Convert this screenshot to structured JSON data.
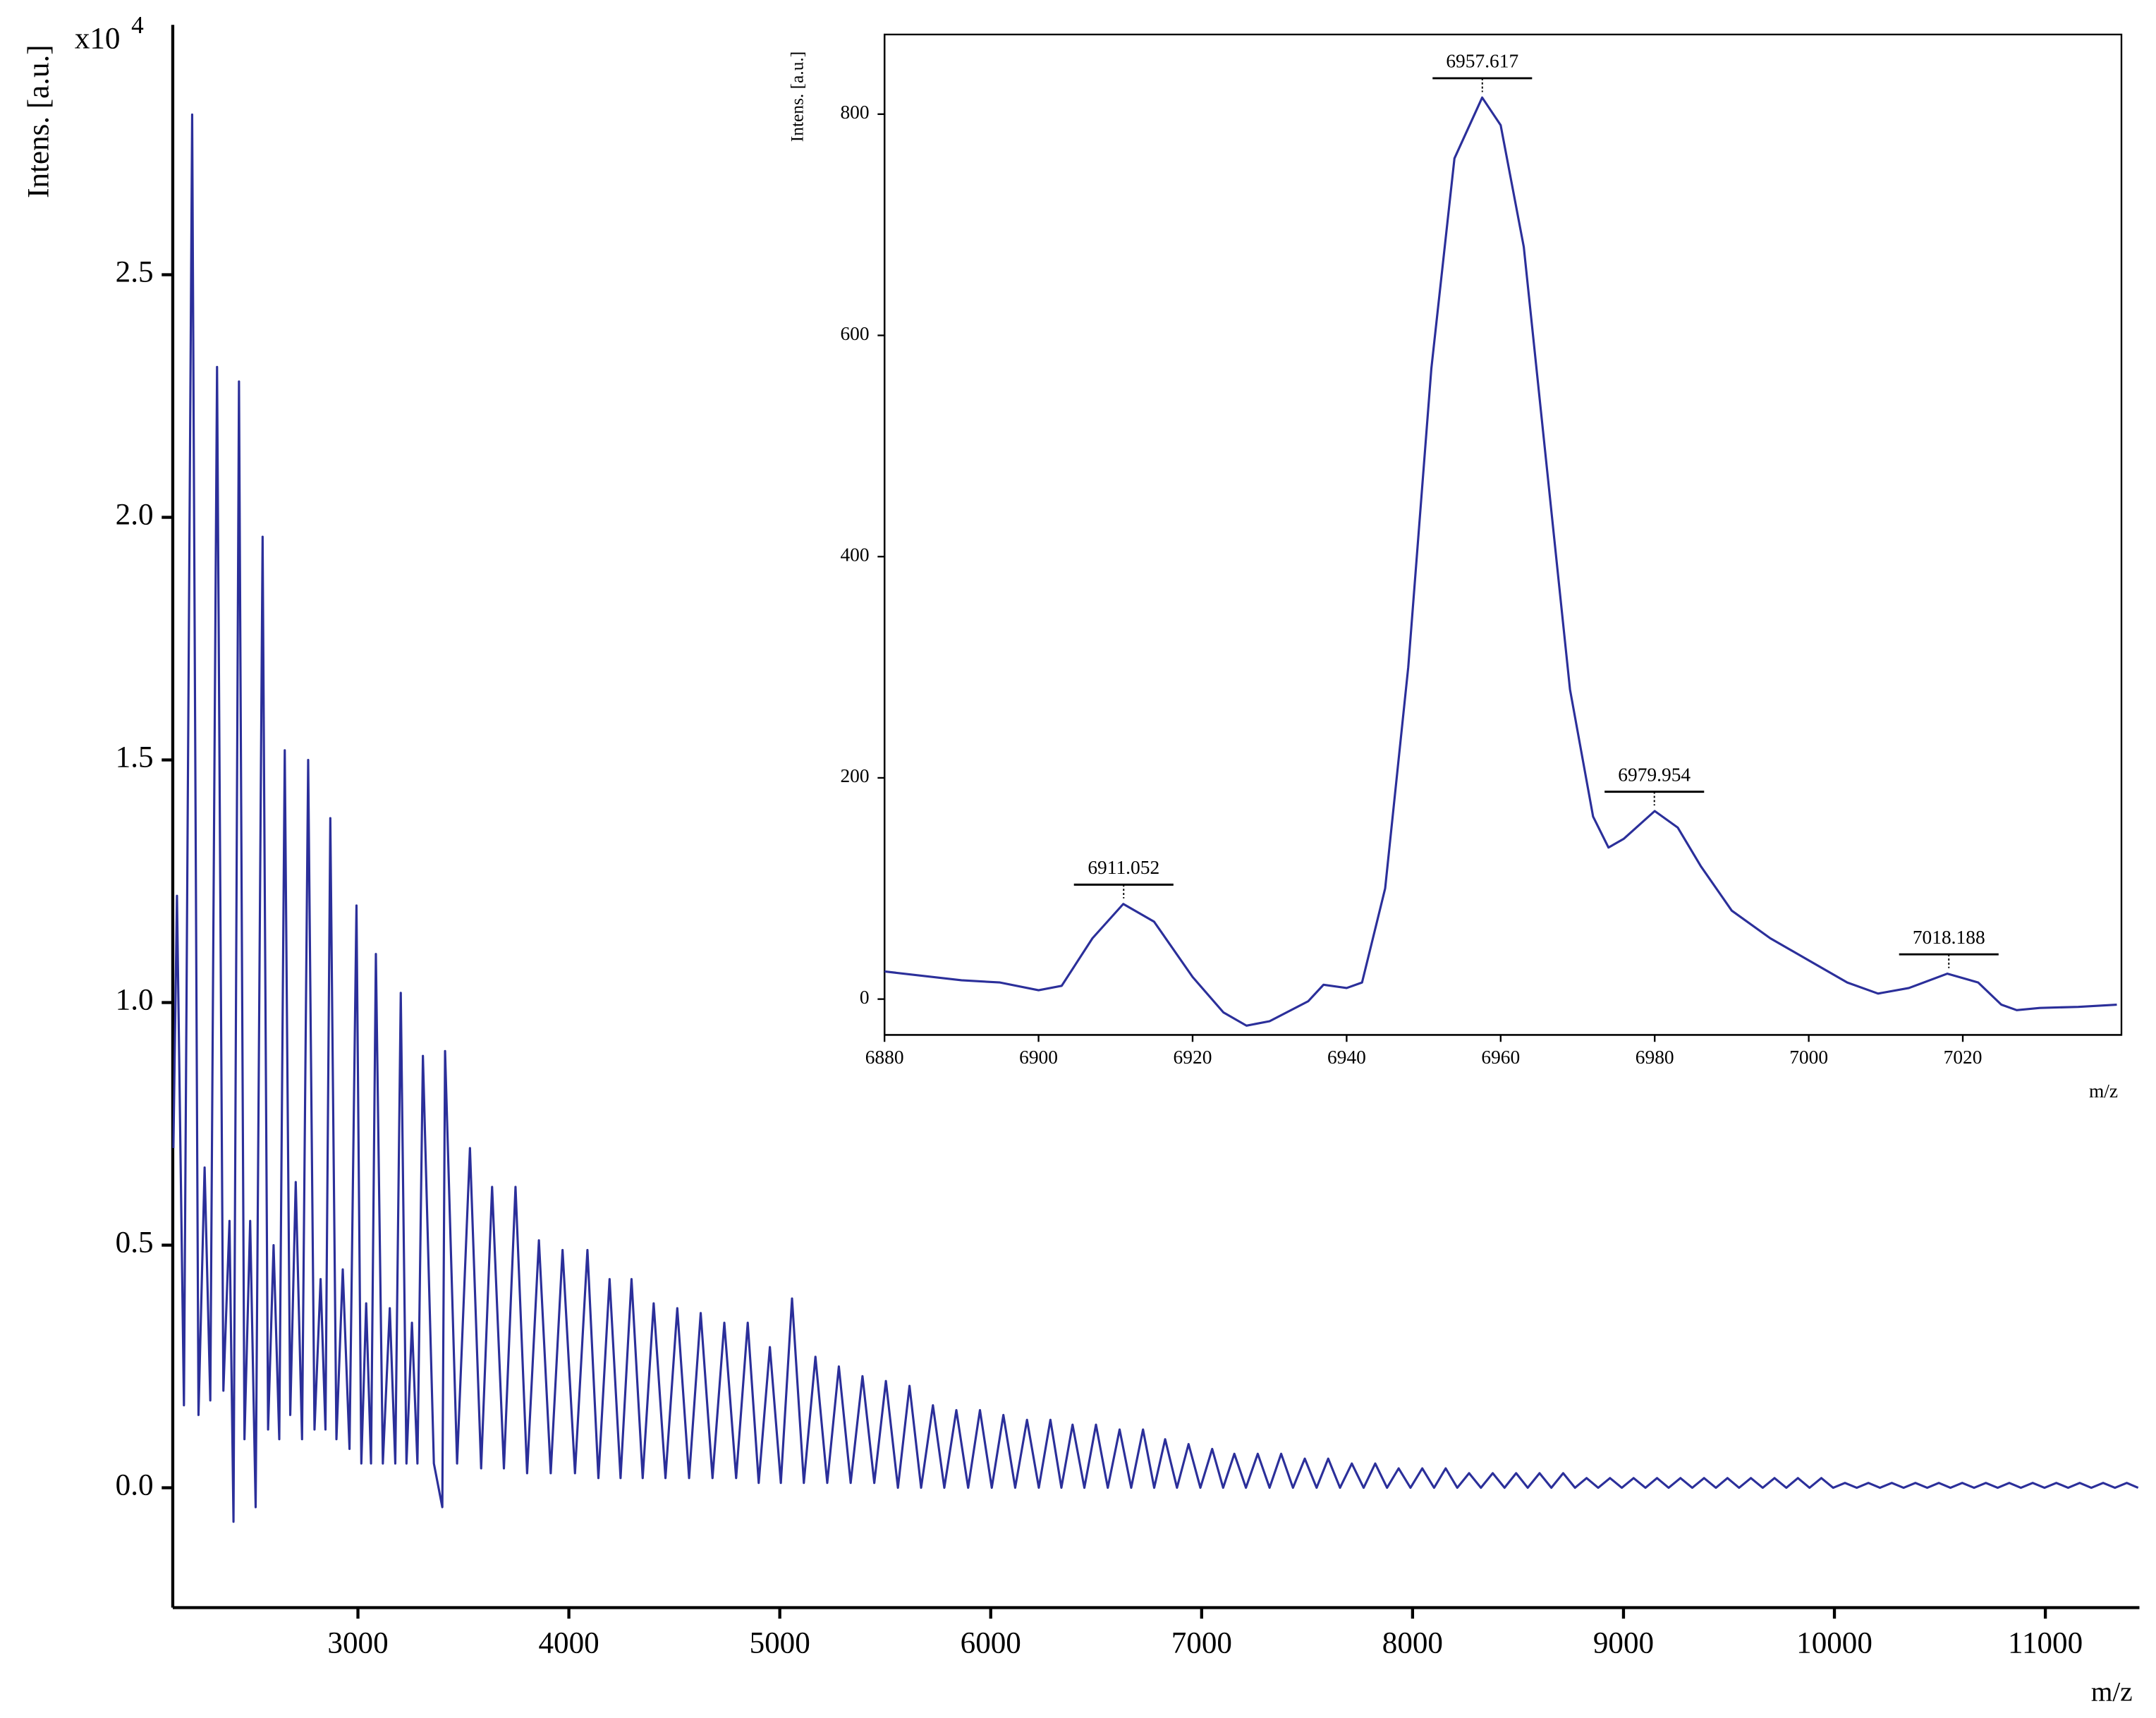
{
  "chart_data": [
    {
      "type": "line",
      "x_label": "m/z",
      "y_label": "Intens. [a.u.]",
      "y_multiplier": "x10",
      "y_multiplier_exp": "4",
      "xlim": [
        2122,
        11446
      ],
      "ylim": [
        -0.247,
        3.015
      ],
      "xticks": [
        3000,
        4000,
        5000,
        6000,
        7000,
        8000,
        9000,
        10000,
        11000
      ],
      "yticks": [
        {
          "value": 0,
          "label": "0.0"
        },
        0.5,
        {
          "value": 1,
          "label": "1.0"
        },
        1.5,
        {
          "value": 2,
          "label": "2.0"
        },
        2.5
      ],
      "x": [
        2125,
        2142,
        2175,
        2214,
        2244,
        2273,
        2300,
        2332,
        2362,
        2391,
        2410,
        2436,
        2462,
        2489,
        2515,
        2548,
        2574,
        2600,
        2627,
        2653,
        2679,
        2705,
        2735,
        2764,
        2794,
        2823,
        2846,
        2869,
        2898,
        2928,
        2960,
        2993,
        3016,
        3039,
        3062,
        3085,
        3118,
        3151,
        3177,
        3203,
        3230,
        3256,
        3282,
        3308,
        3360,
        3400,
        3413,
        3470,
        3531,
        3584,
        3636,
        3692,
        3747,
        3802,
        3858,
        3914,
        3970,
        4029,
        4088,
        4140,
        4193,
        4245,
        4297,
        4350,
        4402,
        4458,
        4514,
        4570,
        4625,
        4681,
        4737,
        4793,
        4848,
        4900,
        4953,
        5005,
        5058,
        5114,
        5169,
        5225,
        5280,
        5336,
        5392,
        5448,
        5503,
        5560,
        5615,
        5670,
        5726,
        5780,
        5837,
        5893,
        5949,
        6005,
        6060,
        6116,
        6172,
        6228,
        6283,
        6335,
        6388,
        6444,
        6499,
        6555,
        6611,
        6666,
        6722,
        6775,
        6827,
        6883,
        6938,
        6994,
        7050,
        7102,
        7155,
        7210,
        7266,
        7322,
        7377,
        7433,
        7489,
        7545,
        7600,
        7656,
        7712,
        7768,
        7823,
        7879,
        7934,
        7990,
        8046,
        8102,
        8157,
        8212,
        8268,
        8324,
        8380,
        8436,
        8491,
        8546,
        8602,
        8658,
        8714,
        8770,
        8825,
        8880,
        8936,
        8992,
        9048,
        9104,
        9159,
        9214,
        9270,
        9326,
        9382,
        9438,
        9493,
        9548,
        9604,
        9660,
        9716,
        9772,
        9827,
        9882,
        9938,
        9994,
        10050,
        10106,
        10161,
        10216,
        10272,
        10328,
        10384,
        10440,
        10495,
        10550,
        10606,
        10662,
        10718,
        10774,
        10829,
        10884,
        10940,
        10996,
        11052,
        11108,
        11163,
        11218,
        11274,
        11330,
        11386,
        11440
      ],
      "series": [
        {
          "color": "#2b2f9a",
          "values": [
            0.7,
            1.22,
            0.17,
            2.83,
            0.15,
            0.66,
            0.18,
            2.31,
            0.2,
            0.55,
            -0.07,
            2.28,
            0.1,
            0.55,
            -0.04,
            1.96,
            0.12,
            0.5,
            0.1,
            1.52,
            0.15,
            0.63,
            0.1,
            1.5,
            0.12,
            0.43,
            0.12,
            1.38,
            0.1,
            0.45,
            0.08,
            1.2,
            0.05,
            0.38,
            0.05,
            1.1,
            0.05,
            0.37,
            0.05,
            1.02,
            0.05,
            0.34,
            0.05,
            0.89,
            0.05,
            -0.04,
            0.9,
            0.05,
            0.7,
            0.04,
            0.62,
            0.04,
            0.62,
            0.03,
            0.51,
            0.03,
            0.49,
            0.03,
            0.49,
            0.02,
            0.43,
            0.02,
            0.43,
            0.02,
            0.38,
            0.02,
            0.37,
            0.02,
            0.36,
            0.02,
            0.34,
            0.02,
            0.34,
            0.01,
            0.29,
            0.01,
            0.39,
            0.01,
            0.27,
            0.01,
            0.25,
            0.01,
            0.23,
            0.01,
            0.22,
            0,
            0.21,
            0,
            0.17,
            0,
            0.16,
            0,
            0.16,
            0,
            0.15,
            0,
            0.14,
            0,
            0.14,
            0,
            0.13,
            0,
            0.13,
            0,
            0.12,
            0,
            0.12,
            0,
            0.1,
            0,
            0.09,
            0,
            0.08,
            0,
            0.07,
            0,
            0.07,
            0,
            0.07,
            0,
            0.06,
            0,
            0.06,
            0,
            0.05,
            0,
            0.05,
            0,
            0.04,
            0,
            0.04,
            0,
            0.04,
            0,
            0.03,
            0,
            0.03,
            0,
            0.03,
            0,
            0.03,
            0,
            0.03,
            0,
            0.02,
            0,
            0.02,
            0,
            0.02,
            0,
            0.02,
            0,
            0.02,
            0,
            0.02,
            0,
            0.02,
            0,
            0.02,
            0,
            0.02,
            0,
            0.02,
            0,
            0.02,
            0,
            0.01,
            0,
            0.01,
            0,
            0.01,
            0,
            0.01,
            0,
            0.01,
            0,
            0.01,
            0,
            0.01,
            0,
            0.01,
            0,
            0.01,
            0,
            0.01,
            0,
            0.01,
            0,
            0.01,
            0,
            0.01,
            0
          ]
        }
      ]
    },
    {
      "type": "line",
      "x_label": "m/z",
      "y_label": "Intens. [a.u.]",
      "xlim": [
        6880,
        7040.6
      ],
      "ylim": [
        -32.4,
        872
      ],
      "xticks": [
        6880,
        6900,
        6920,
        6940,
        6960,
        6980,
        7000,
        7020
      ],
      "yticks": [
        0,
        200,
        400,
        600,
        800
      ],
      "x": [
        6880,
        6890,
        6895,
        6900,
        6903,
        6907,
        6911,
        6915,
        6920,
        6924,
        6927,
        6930,
        6935,
        6937,
        6940,
        6942,
        6945,
        6948,
        6951,
        6954,
        6957.6,
        6960,
        6963,
        6966,
        6969,
        6972,
        6974,
        6976,
        6980,
        6983,
        6986,
        6990,
        6995,
        7000,
        7005,
        7009,
        7013,
        7018,
        7022,
        7025,
        7027,
        7030,
        7035,
        7040
      ],
      "series": [
        {
          "color": "#2b2f9a",
          "values": [
            25,
            17,
            15,
            8,
            12,
            55,
            86,
            70,
            20,
            -12,
            -24,
            -20,
            -2,
            13,
            10,
            15,
            100,
            300,
            570,
            760,
            815,
            790,
            680,
            480,
            280,
            165,
            137,
            145,
            170,
            155,
            120,
            80,
            55,
            35,
            15,
            5,
            10,
            23,
            15,
            -5,
            -10,
            -8,
            -7,
            -5
          ]
        }
      ],
      "peak_labels": [
        6911.052,
        6957.617,
        6979.954,
        7018.188
      ],
      "peak_values": [
        86,
        815,
        170,
        23
      ]
    }
  ]
}
